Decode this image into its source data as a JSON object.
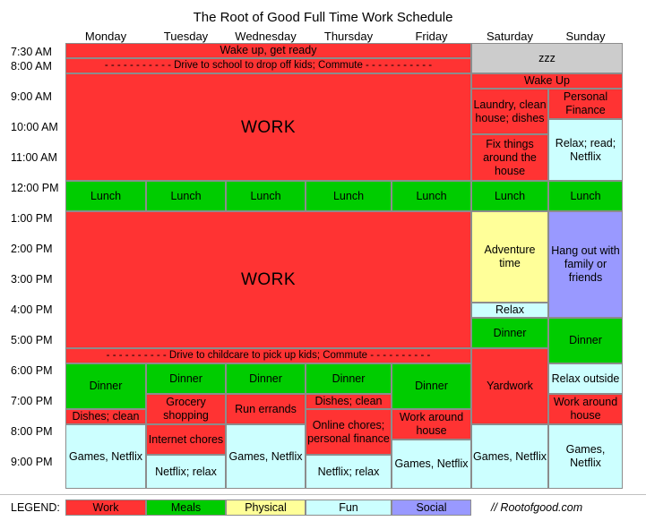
{
  "title": "The Root of Good Full Time Work Schedule",
  "days": [
    "Monday",
    "Tuesday",
    "Wednesday",
    "Thursday",
    "Friday",
    "Saturday",
    "Sunday"
  ],
  "times": [
    "7:30 AM",
    "8:00 AM",
    "9:00 AM",
    "10:00 AM",
    "11:00 AM",
    "12:00 PM",
    "1:00 PM",
    "2:00 PM",
    "3:00 PM",
    "4:00 PM",
    "5:00 PM",
    "6:00 PM",
    "7:00 PM",
    "8:00 PM",
    "9:00 PM"
  ],
  "events": {
    "wake_weekday": "Wake up, get ready",
    "commute_am": "- - - - - - - - - - - Drive to school to drop off kids; Commute - - - - - - - - - - -",
    "work_am": "WORK",
    "zzz": "zzz",
    "wake_weekend": "Wake Up",
    "sat_laundry": "Laundry, clean house; dishes",
    "sat_fix": "Fix things around the house",
    "sun_finance": "Personal Finance",
    "sun_relax": "Relax; read; Netflix",
    "lunch": "Lunch",
    "work_pm": "WORK",
    "sat_adventure": "Adventure time",
    "sat_relax": "Relax",
    "sun_hangout": "Hang out with family or friends",
    "commute_pm": "- - - - - - - - - - Drive to childcare to pick up kids; Commute - - - - - - - - - -",
    "dinner": "Dinner",
    "sat_yardwork": "Yardwork",
    "sun_relax_outside": "Relax outside",
    "sun_work_around": "Work around house",
    "mon_dishes": "Dishes; clean",
    "tue_grocery": "Grocery shopping",
    "wed_errands": "Run errands",
    "thu_dishes": "Dishes; clean",
    "thu_online": "Online chores; personal finance",
    "fri_work_around": "Work around house",
    "games_netflix": "Games, Netflix",
    "tue_internet": "Internet chores",
    "netflix_relax": "Netflix; relax"
  },
  "legend": {
    "label": "LEGEND:",
    "work": "Work",
    "meals": "Meals",
    "physical": "Physical",
    "fun": "Fun",
    "social": "Social"
  },
  "site": "// Rootofgood.com",
  "colors": {
    "work": "#ff3333",
    "meals": "#00cc00",
    "physical": "#ffff99",
    "fun": "#ccffff",
    "social": "#9999ff",
    "sleep": "#cccccc"
  }
}
